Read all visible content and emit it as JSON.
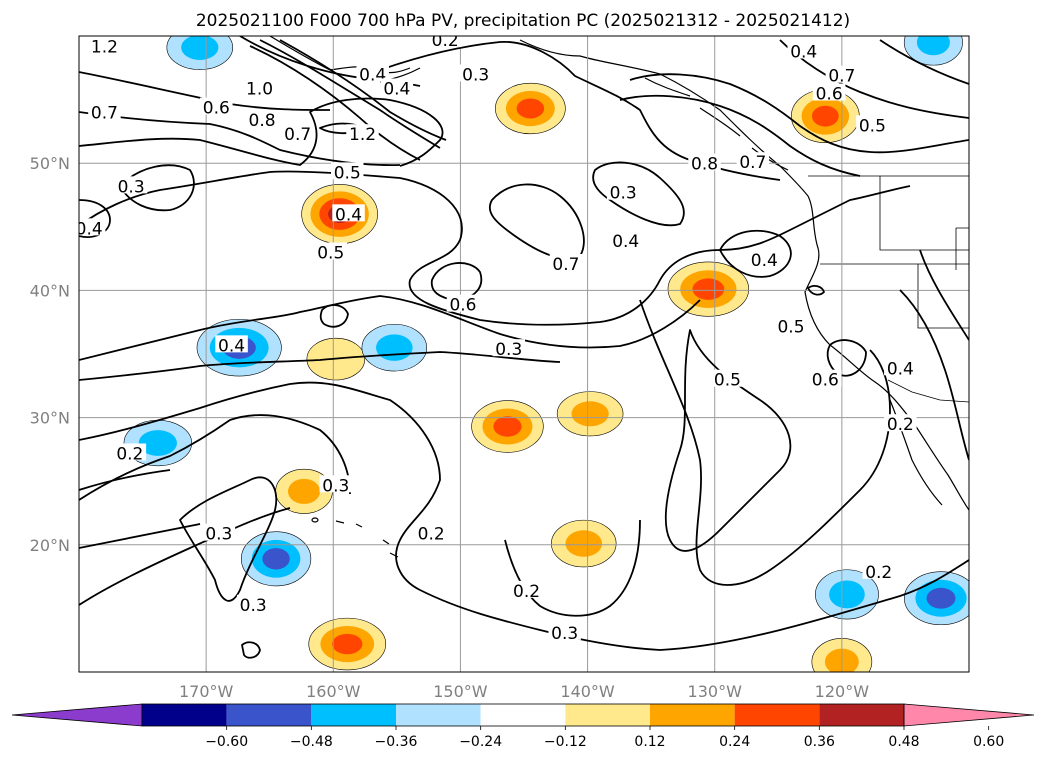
{
  "chart_data": {
    "type": "contour-map",
    "title": "2025021100 F000 700 hPa PV, precipitation PC (2025021312 - 2025021412)",
    "projection": "cylindrical",
    "lon_range": [
      -180,
      -110
    ],
    "lat_range": [
      10,
      60
    ],
    "grid": true,
    "lat_ticks": [
      {
        "value": 50,
        "label": "50°N"
      },
      {
        "value": 40,
        "label": "40°N"
      },
      {
        "value": 30,
        "label": "30°N"
      },
      {
        "value": 20,
        "label": "20°N"
      }
    ],
    "lon_ticks": [
      {
        "value": -170,
        "label": "170°W"
      },
      {
        "value": -160,
        "label": "160°W"
      },
      {
        "value": -150,
        "label": "150°W"
      },
      {
        "value": -140,
        "label": "140°W"
      },
      {
        "value": -130,
        "label": "130°W"
      },
      {
        "value": -120,
        "label": "120°W"
      }
    ],
    "contour_field": "700 hPa PV",
    "contour_labels": [
      {
        "text": "1.2",
        "lon": -178.0,
        "lat": 59.1
      },
      {
        "text": "0.2",
        "lon": -151.2,
        "lat": 59.6
      },
      {
        "text": "0.3",
        "lon": -148.8,
        "lat": 56.9
      },
      {
        "text": "0.4",
        "lon": -156.9,
        "lat": 56.9
      },
      {
        "text": "0.4",
        "lon": -155.0,
        "lat": 55.8
      },
      {
        "text": "0.4",
        "lon": -123.0,
        "lat": 58.7
      },
      {
        "text": "0.7",
        "lon": -120.0,
        "lat": 56.8
      },
      {
        "text": "0.6",
        "lon": -121.0,
        "lat": 55.4
      },
      {
        "text": "0.5",
        "lon": -117.6,
        "lat": 52.9
      },
      {
        "text": "1.0",
        "lon": -165.8,
        "lat": 55.8
      },
      {
        "text": "0.7",
        "lon": -178.0,
        "lat": 53.9
      },
      {
        "text": "0.6",
        "lon": -169.2,
        "lat": 54.3
      },
      {
        "text": "0.8",
        "lon": -165.6,
        "lat": 53.3
      },
      {
        "text": "0.7",
        "lon": -162.8,
        "lat": 52.2
      },
      {
        "text": "1.2",
        "lon": -157.7,
        "lat": 52.2
      },
      {
        "text": "0.5",
        "lon": -158.9,
        "lat": 49.2
      },
      {
        "text": "0.3",
        "lon": -175.9,
        "lat": 48.1
      },
      {
        "text": "0.4",
        "lon": -179.2,
        "lat": 44.8
      },
      {
        "text": "0.4",
        "lon": -158.8,
        "lat": 45.9
      },
      {
        "text": "0.5",
        "lon": -160.2,
        "lat": 42.9
      },
      {
        "text": "0.3",
        "lon": -137.2,
        "lat": 47.6
      },
      {
        "text": "0.8",
        "lon": -130.8,
        "lat": 49.9
      },
      {
        "text": "0.7",
        "lon": -127.0,
        "lat": 50.0
      },
      {
        "text": "0.4",
        "lon": -137.0,
        "lat": 43.8
      },
      {
        "text": "0.7",
        "lon": -141.7,
        "lat": 42.0
      },
      {
        "text": "0.4",
        "lon": -126.1,
        "lat": 42.3
      },
      {
        "text": "0.6",
        "lon": -149.8,
        "lat": 38.8
      },
      {
        "text": "0.5",
        "lon": -124.0,
        "lat": 37.1
      },
      {
        "text": "0.4",
        "lon": -168.0,
        "lat": 35.6
      },
      {
        "text": "0.3",
        "lon": -146.2,
        "lat": 35.3
      },
      {
        "text": "0.5",
        "lon": -129.0,
        "lat": 32.9
      },
      {
        "text": "0.6",
        "lon": -121.3,
        "lat": 32.9
      },
      {
        "text": "0.4",
        "lon": -115.4,
        "lat": 33.8
      },
      {
        "text": "0.2",
        "lon": -115.4,
        "lat": 29.4
      },
      {
        "text": "0.2",
        "lon": -176.0,
        "lat": 27.1
      },
      {
        "text": "0.3",
        "lon": -159.8,
        "lat": 24.6
      },
      {
        "text": "0.3",
        "lon": -169.0,
        "lat": 20.8
      },
      {
        "text": "0.2",
        "lon": -152.3,
        "lat": 20.8
      },
      {
        "text": "0.2",
        "lon": -144.8,
        "lat": 16.3
      },
      {
        "text": "0.3",
        "lon": -166.3,
        "lat": 15.2
      },
      {
        "text": "0.3",
        "lon": -141.8,
        "lat": 13.0
      },
      {
        "text": "0.2",
        "lon": -117.1,
        "lat": 17.8
      }
    ],
    "shaded_field": "precipitation PC",
    "colorbar": {
      "levels": [
        -0.72,
        -0.6,
        -0.48,
        -0.36,
        -0.24,
        -0.12,
        0.12,
        0.24,
        0.36,
        0.48,
        0.6,
        0.72
      ],
      "colors": [
        "#8c3ccc",
        "#00008b",
        "#3a54cc",
        "#00bfff",
        "#b0e2ff",
        "#ffffff",
        "#ffe98c",
        "#ffa500",
        "#ff4500",
        "#b22222",
        "#ff88aa"
      ],
      "tick_labels": [
        "−0.60",
        "−0.48",
        "−0.36",
        "−0.24",
        "−0.12",
        "0.12",
        "0.24",
        "0.36",
        "0.48",
        "0.60"
      ],
      "extend": "both",
      "orientation": "horizontal"
    },
    "shaded_features": [
      {
        "sign": "positive",
        "lon": -159.5,
        "lat": 46.0,
        "peak": 0.5
      },
      {
        "sign": "positive",
        "lon": -144.5,
        "lat": 54.3,
        "peak": 0.36
      },
      {
        "sign": "positive",
        "lon": -130.5,
        "lat": 40.1,
        "peak": 0.42
      },
      {
        "sign": "positive",
        "lon": -121.3,
        "lat": 53.7,
        "peak": 0.4
      },
      {
        "sign": "positive",
        "lon": -146.3,
        "lat": 29.3,
        "peak": 0.38
      },
      {
        "sign": "positive",
        "lon": -139.8,
        "lat": 30.3,
        "peak": 0.26
      },
      {
        "sign": "positive",
        "lon": -162.3,
        "lat": 24.2,
        "peak": 0.26
      },
      {
        "sign": "positive",
        "lon": -140.3,
        "lat": 20.1,
        "peak": 0.3
      },
      {
        "sign": "positive",
        "lon": -158.9,
        "lat": 12.2,
        "peak": 0.38
      },
      {
        "sign": "positive",
        "lon": -120.0,
        "lat": 10.8,
        "peak": 0.3
      },
      {
        "sign": "positive",
        "lon": -159.8,
        "lat": 34.6,
        "peak": 0.22
      },
      {
        "sign": "negative",
        "lon": -167.4,
        "lat": 35.5,
        "peak": -0.46
      },
      {
        "sign": "negative",
        "lon": -164.5,
        "lat": 18.9,
        "peak": -0.42
      },
      {
        "sign": "negative",
        "lon": -155.2,
        "lat": 35.5,
        "peak": -0.3
      },
      {
        "sign": "negative",
        "lon": -173.8,
        "lat": 28.0,
        "peak": -0.28
      },
      {
        "sign": "negative",
        "lon": -119.6,
        "lat": 16.1,
        "peak": -0.34
      },
      {
        "sign": "negative",
        "lon": -112.2,
        "lat": 15.8,
        "peak": -0.4
      },
      {
        "sign": "negative",
        "lon": -170.5,
        "lat": 59.1,
        "peak": -0.26
      },
      {
        "sign": "negative",
        "lon": -112.8,
        "lat": 59.5,
        "peak": -0.28
      }
    ]
  }
}
